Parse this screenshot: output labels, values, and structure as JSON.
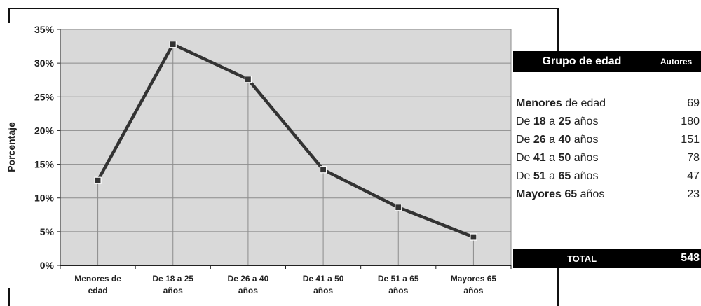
{
  "chart_data": {
    "type": "line",
    "ylabel": "Porcentaje",
    "xlabel": "",
    "title": "",
    "ylim": [
      0,
      35
    ],
    "y_ticks": [
      "0%",
      "5%",
      "10%",
      "15%",
      "20%",
      "25%",
      "30%",
      "35%"
    ],
    "y_tick_values": [
      0,
      5,
      10,
      15,
      20,
      25,
      30,
      35
    ],
    "grid": true,
    "categories": [
      [
        "Menores de",
        "edad"
      ],
      [
        "De 18 a 25",
        "años"
      ],
      [
        "De 26 a 40",
        "años"
      ],
      [
        "De 41 a 50",
        "años"
      ],
      [
        "De 51 a 65",
        "años"
      ],
      [
        "Mayores 65",
        "años"
      ]
    ],
    "series": [
      {
        "values": [
          12.6,
          32.8,
          27.6,
          14.2,
          8.6,
          4.2
        ]
      }
    ],
    "colors": {
      "line": "#333333",
      "plot_bg": "#d9d9d9",
      "grid": "#8c8c8c"
    }
  },
  "table": {
    "header_group": "Grupo de edad",
    "header_authors": "Autores",
    "rows": [
      {
        "bold1": "Menores",
        "text1": " de edad",
        "bold2": "",
        "text2": "",
        "value": "69"
      },
      {
        "pre": "De ",
        "bold1": "18",
        "text1": " a ",
        "bold2": "25",
        "text2": " años",
        "value": "180"
      },
      {
        "pre": "De ",
        "bold1": "26",
        "text1": " a ",
        "bold2": "40",
        "text2": " años",
        "value": "151"
      },
      {
        "pre": "De ",
        "bold1": "41",
        "text1": " a ",
        "bold2": "50",
        "text2": " años",
        "value": "78"
      },
      {
        "pre": "De ",
        "bold1": "51",
        "text1": " a ",
        "bold2": "65",
        "text2": " años",
        "value": "47"
      },
      {
        "bold1": "Mayores 65",
        "text1": " años",
        "bold2": "",
        "text2": "",
        "value": "23"
      }
    ],
    "total_label": "TOTAL",
    "total_value": "548"
  }
}
